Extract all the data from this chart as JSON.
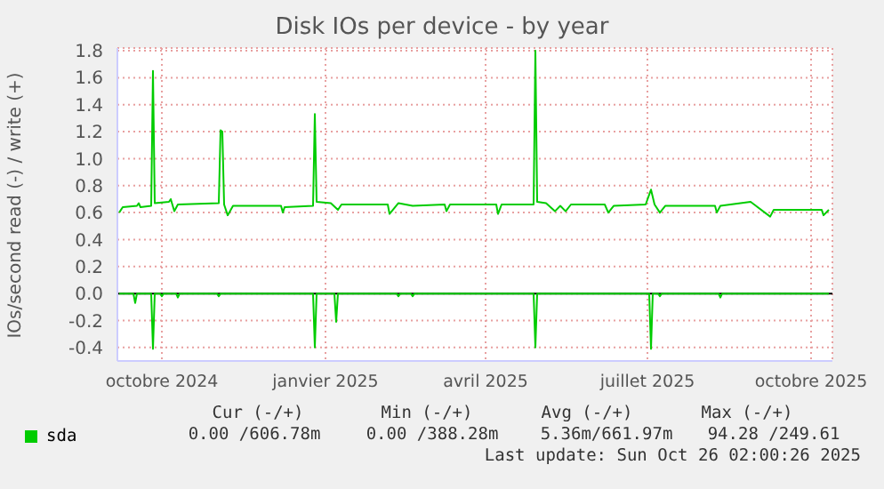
{
  "chart_data": {
    "type": "line",
    "title": "Disk IOs per device - by year",
    "ylabel": "IOs/second read (-) / write (+)",
    "xlim": [
      "2024-09-06",
      "2025-10-13"
    ],
    "xticks": [
      {
        "value": "2024-10-01",
        "label": "octobre 2024"
      },
      {
        "value": "2025-01-01",
        "label": "janvier 2025"
      },
      {
        "value": "2025-04-01",
        "label": "avril 2025"
      },
      {
        "value": "2025-07-01",
        "label": "juillet 2025"
      },
      {
        "value": "2025-10-01",
        "label": "octobre 2025"
      }
    ],
    "ylim": [
      -0.5,
      1.82
    ],
    "yticks": [
      -0.4,
      -0.2,
      {
        "value": 0,
        "label": "0.0"
      },
      0.2,
      0.4,
      0.6,
      0.8,
      {
        "value": 1,
        "label": "1.0"
      },
      1.2,
      1.4,
      1.6,
      1.8
    ],
    "series": [
      {
        "name": "sda",
        "color": "#00cc00",
        "x": [
          "2024-09-07",
          "2024-09-09",
          "2024-09-17",
          "2024-09-18",
          "2024-09-19",
          "2024-09-25",
          "2024-09-26",
          "2024-09-27",
          "2024-10-05",
          "2024-10-06",
          "2024-10-08",
          "2024-10-10",
          "2024-11-02",
          "2024-11-03",
          "2024-11-04",
          "2024-11-05",
          "2024-11-07",
          "2024-11-10",
          "2024-12-07",
          "2024-12-08",
          "2024-12-09",
          "2024-12-25",
          "2024-12-26",
          "2024-12-27",
          "2025-01-04",
          "2025-01-08",
          "2025-01-10",
          "2025-02-05",
          "2025-02-06",
          "2025-02-11",
          "2025-02-19",
          "2025-03-09",
          "2025-03-10",
          "2025-03-12",
          "2025-04-07",
          "2025-04-08",
          "2025-04-10",
          "2025-04-28",
          "2025-04-29",
          "2025-04-30",
          "2025-05-05",
          "2025-05-10",
          "2025-05-13",
          "2025-05-16",
          "2025-05-19",
          "2025-06-07",
          "2025-06-09",
          "2025-06-12",
          "2025-06-30",
          "2025-07-03",
          "2025-07-05",
          "2025-07-08",
          "2025-07-11",
          "2025-08-08",
          "2025-08-09",
          "2025-08-11",
          "2025-08-28",
          "2025-08-30",
          "2025-09-08",
          "2025-09-10",
          "2025-10-07",
          "2025-10-08",
          "2025-10-11"
        ],
        "values": [
          0.6,
          0.64,
          0.65,
          0.67,
          0.64,
          0.65,
          1.65,
          0.67,
          0.68,
          0.7,
          0.61,
          0.66,
          0.67,
          1.21,
          1.2,
          0.66,
          0.58,
          0.65,
          0.65,
          0.6,
          0.64,
          0.65,
          1.33,
          0.68,
          0.67,
          0.62,
          0.66,
          0.66,
          0.59,
          0.67,
          0.65,
          0.66,
          0.61,
          0.66,
          0.66,
          0.59,
          0.66,
          0.66,
          1.8,
          0.68,
          0.67,
          0.61,
          0.65,
          0.61,
          0.66,
          0.66,
          0.6,
          0.65,
          0.66,
          0.77,
          0.66,
          0.6,
          0.65,
          0.65,
          0.6,
          0.65,
          0.68,
          0.66,
          0.57,
          0.62,
          0.62,
          0.58,
          0.62
        ]
      },
      {
        "color": "#00cc00",
        "x": [
          "2024-09-07",
          "2024-09-15",
          "2024-09-16",
          "2024-09-17",
          "2024-09-25",
          "2024-09-26",
          "2024-09-27",
          "2024-09-30",
          "2024-10-01",
          "2024-10-02",
          "2024-10-09",
          "2024-10-10",
          "2024-10-11",
          "2024-11-01",
          "2024-11-02",
          "2024-11-03",
          "2024-12-25",
          "2024-12-26",
          "2024-12-27",
          "2025-01-06",
          "2025-01-07",
          "2025-01-08",
          "2025-02-10",
          "2025-02-11",
          "2025-02-12",
          "2025-02-18",
          "2025-02-19",
          "2025-02-20",
          "2025-04-28",
          "2025-04-29",
          "2025-04-30",
          "2025-07-02",
          "2025-07-03",
          "2025-07-04",
          "2025-07-07",
          "2025-07-08",
          "2025-07-09",
          "2025-08-10",
          "2025-08-11",
          "2025-08-12",
          "2025-10-11"
        ],
        "values": [
          0,
          0,
          -0.07,
          0,
          0,
          -0.41,
          0,
          0,
          -0.02,
          0,
          0,
          -0.03,
          0,
          0,
          -0.02,
          0,
          0,
          -0.4,
          0,
          0,
          -0.21,
          0,
          0,
          -0.02,
          0,
          0,
          -0.02,
          0,
          0,
          -0.4,
          0,
          0,
          -0.41,
          0,
          0,
          -0.02,
          0,
          0,
          -0.03,
          0,
          0
        ]
      }
    ],
    "ref_lines": [
      {
        "axis": "y",
        "value": 0,
        "color": "#000000"
      }
    ],
    "grid": true,
    "legend": "bottom left",
    "marker": "none",
    "line_style": "solid",
    "annotations": [
      "Cur (-/+)",
      "Min (-/+)",
      "Avg (-/+)",
      "Max (-/+)",
      "0.00 /606.78m",
      "0.00 /388.28m",
      "5.36m/661.97m",
      "94.28 /249.61",
      "Last update: Sun Oct 26 02:00:26 2025"
    ]
  }
}
